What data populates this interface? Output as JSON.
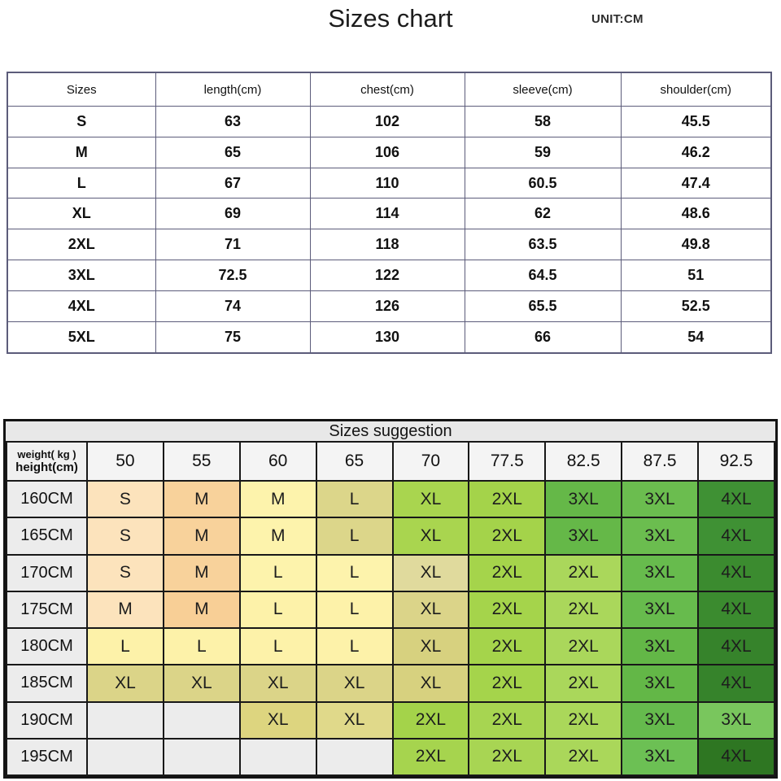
{
  "page": {
    "title": "Sizes chart",
    "unit_label": "UNIT:CM"
  },
  "size_chart": {
    "columns": [
      "Sizes",
      "length(cm)",
      "chest(cm)",
      "sleeve(cm)",
      "shoulder(cm)"
    ],
    "rows": [
      [
        "S",
        "63",
        "102",
        "58",
        "45.5"
      ],
      [
        "M",
        "65",
        "106",
        "59",
        "46.2"
      ],
      [
        "L",
        "67",
        "110",
        "60.5",
        "47.4"
      ],
      [
        "XL",
        "69",
        "114",
        "62",
        "48.6"
      ],
      [
        "2XL",
        "71",
        "118",
        "63.5",
        "49.8"
      ],
      [
        "3XL",
        "72.5",
        "122",
        "64.5",
        "51"
      ],
      [
        "4XL",
        "74",
        "126",
        "65.5",
        "52.5"
      ],
      [
        "5XL",
        "75",
        "130",
        "66",
        "54"
      ]
    ],
    "border_color": "#5c5c7a"
  },
  "suggestion": {
    "title": "Sizes suggestion",
    "corner_line1": "weight( kg )",
    "corner_line2": "height(cm)",
    "weights": [
      "50",
      "55",
      "60",
      "65",
      "70",
      "77.5",
      "82.5",
      "87.5",
      "92.5"
    ],
    "rows": [
      {
        "height": "160CM",
        "cells": [
          {
            "label": "S",
            "bg": "#fce3bc"
          },
          {
            "label": "M",
            "bg": "#f8d29b"
          },
          {
            "label": "M",
            "bg": "#fdf3ac"
          },
          {
            "label": "L",
            "bg": "#dcd68a"
          },
          {
            "label": "XL",
            "bg": "#a9d54f"
          },
          {
            "label": "2XL",
            "bg": "#a4d34a"
          },
          {
            "label": "3XL",
            "bg": "#65b848"
          },
          {
            "label": "3XL",
            "bg": "#6bbd4f"
          },
          {
            "label": "4XL",
            "bg": "#3f9134"
          }
        ]
      },
      {
        "height": "165CM",
        "cells": [
          {
            "label": "S",
            "bg": "#fce3bc"
          },
          {
            "label": "M",
            "bg": "#f8d29b"
          },
          {
            "label": "M",
            "bg": "#fdf3ac"
          },
          {
            "label": "L",
            "bg": "#dcd68a"
          },
          {
            "label": "XL",
            "bg": "#a9d54f"
          },
          {
            "label": "2XL",
            "bg": "#a4d34a"
          },
          {
            "label": "3XL",
            "bg": "#65b848"
          },
          {
            "label": "3XL",
            "bg": "#6bbd4f"
          },
          {
            "label": "4XL",
            "bg": "#3f9134"
          }
        ]
      },
      {
        "height": "170CM",
        "cells": [
          {
            "label": "S",
            "bg": "#fce3bc"
          },
          {
            "label": "M",
            "bg": "#f8d29b"
          },
          {
            "label": "L",
            "bg": "#fdf3ac"
          },
          {
            "label": "L",
            "bg": "#fdf3ac"
          },
          {
            "label": "XL",
            "bg": "#e0da9d"
          },
          {
            "label": "2XL",
            "bg": "#a5d44b"
          },
          {
            "label": "2XL",
            "bg": "#aad75b"
          },
          {
            "label": "3XL",
            "bg": "#67bb4d"
          },
          {
            "label": "4XL",
            "bg": "#3b8b2f"
          }
        ]
      },
      {
        "height": "175CM",
        "cells": [
          {
            "label": "M",
            "bg": "#fce3bc"
          },
          {
            "label": "M",
            "bg": "#f8cf96"
          },
          {
            "label": "L",
            "bg": "#fdf2a9"
          },
          {
            "label": "L",
            "bg": "#fdf2a9"
          },
          {
            "label": "XL",
            "bg": "#dbd489"
          },
          {
            "label": "2XL",
            "bg": "#a5d44b"
          },
          {
            "label": "2XL",
            "bg": "#aad75b"
          },
          {
            "label": "3XL",
            "bg": "#67bb4d"
          },
          {
            "label": "4XL",
            "bg": "#3b8b2f"
          }
        ]
      },
      {
        "height": "180CM",
        "cells": [
          {
            "label": "L",
            "bg": "#fdf2a9"
          },
          {
            "label": "L",
            "bg": "#fdf2a9"
          },
          {
            "label": "L",
            "bg": "#fdf2a9"
          },
          {
            "label": "L",
            "bg": "#fdf2a9"
          },
          {
            "label": "XL",
            "bg": "#d7d17f"
          },
          {
            "label": "2XL",
            "bg": "#a5d44b"
          },
          {
            "label": "2XL",
            "bg": "#aad75b"
          },
          {
            "label": "3XL",
            "bg": "#63b747"
          },
          {
            "label": "4XL",
            "bg": "#36832b"
          }
        ]
      },
      {
        "height": "185CM",
        "cells": [
          {
            "label": "XL",
            "bg": "#dbd488"
          },
          {
            "label": "XL",
            "bg": "#dbd488"
          },
          {
            "label": "XL",
            "bg": "#dbd488"
          },
          {
            "label": "XL",
            "bg": "#dbd488"
          },
          {
            "label": "XL",
            "bg": "#d7d17f"
          },
          {
            "label": "2XL",
            "bg": "#a5d44b"
          },
          {
            "label": "2XL",
            "bg": "#aad75b"
          },
          {
            "label": "3XL",
            "bg": "#63b747"
          },
          {
            "label": "4XL",
            "bg": "#36832b"
          }
        ]
      },
      {
        "height": "190CM",
        "cells": [
          {
            "label": "",
            "bg": "#ececec"
          },
          {
            "label": "",
            "bg": "#ececec"
          },
          {
            "label": "XL",
            "bg": "#ddd57f"
          },
          {
            "label": "XL",
            "bg": "#e0d98a"
          },
          {
            "label": "2XL",
            "bg": "#a4d34a"
          },
          {
            "label": "2XL",
            "bg": "#a7d551"
          },
          {
            "label": "2XL",
            "bg": "#aad75a"
          },
          {
            "label": "3XL",
            "bg": "#65ba4d"
          },
          {
            "label": "3XL",
            "bg": "#79c65d"
          }
        ]
      },
      {
        "height": "195CM",
        "cells": [
          {
            "label": "",
            "bg": "#ececec"
          },
          {
            "label": "",
            "bg": "#ececec"
          },
          {
            "label": "",
            "bg": "#ececec"
          },
          {
            "label": "",
            "bg": "#ececec"
          },
          {
            "label": "2XL",
            "bg": "#a6d44e"
          },
          {
            "label": "2XL",
            "bg": "#a8d553"
          },
          {
            "label": "2XL",
            "bg": "#aad75a"
          },
          {
            "label": "3XL",
            "bg": "#6cc054"
          },
          {
            "label": "4XL",
            "bg": "#2e7622"
          }
        ]
      }
    ]
  }
}
